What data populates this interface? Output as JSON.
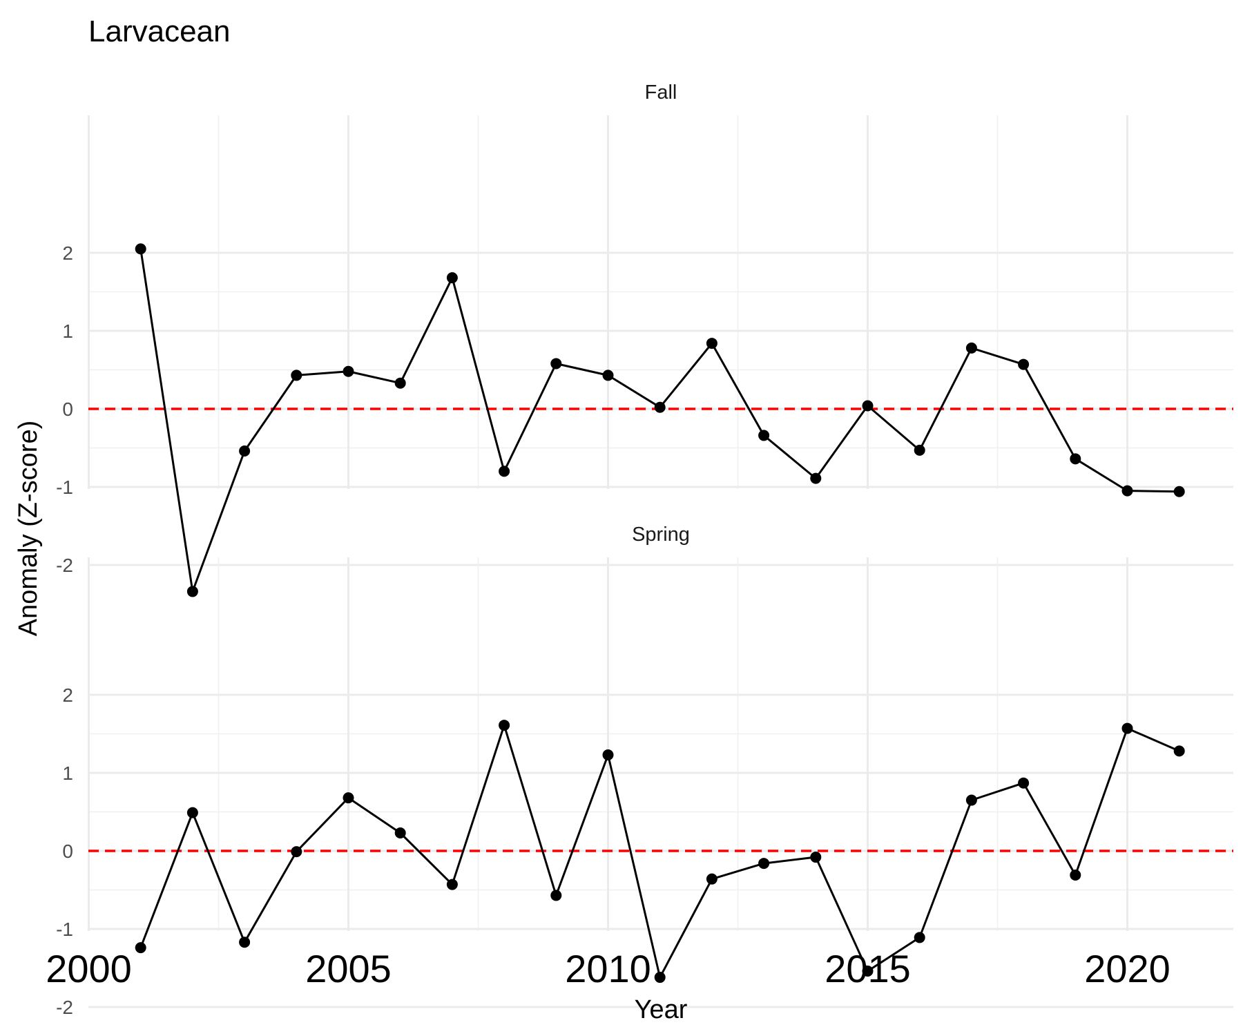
{
  "chart_data": {
    "type": "line",
    "title": "Larvacean",
    "xlabel": "Year",
    "ylabel": "Anomaly (Z-score)",
    "xlim": [
      2000,
      2022
    ],
    "ylim": [
      -2.5,
      2.3
    ],
    "x_ticks": [
      2000,
      2005,
      2010,
      2015,
      2020
    ],
    "y_ticks": [
      -2,
      -1,
      0,
      1,
      2
    ],
    "grid": true,
    "reference_line": {
      "y": 0,
      "color": "#ff0000",
      "style": "dashed"
    },
    "line_color": "#000000",
    "panels": [
      {
        "label": "Fall",
        "x": [
          2001,
          2002,
          2003,
          2004,
          2005,
          2006,
          2007,
          2008,
          2009,
          2010,
          2011,
          2012,
          2013,
          2014,
          2015,
          2016,
          2017,
          2018,
          2019,
          2020,
          2021
        ],
        "y": [
          2.05,
          -2.34,
          -0.54,
          0.43,
          0.48,
          0.33,
          1.68,
          -0.8,
          0.58,
          0.43,
          0.02,
          0.84,
          -0.34,
          -0.89,
          0.04,
          -0.53,
          0.78,
          0.57,
          -0.64,
          -1.05,
          -1.06
        ]
      },
      {
        "label": "Spring",
        "x": [
          2001,
          2002,
          2003,
          2004,
          2005,
          2006,
          2007,
          2008,
          2009,
          2010,
          2011,
          2012,
          2013,
          2014,
          2015,
          2016,
          2017,
          2018,
          2019,
          2020,
          2021
        ],
        "y": [
          -1.24,
          0.49,
          -1.17,
          -0.01,
          0.68,
          0.23,
          -0.43,
          1.61,
          -0.57,
          1.23,
          -1.62,
          -0.36,
          -0.16,
          -0.08,
          -1.54,
          -1.11,
          0.65,
          0.87,
          -0.31,
          1.57,
          1.28
        ]
      }
    ]
  }
}
